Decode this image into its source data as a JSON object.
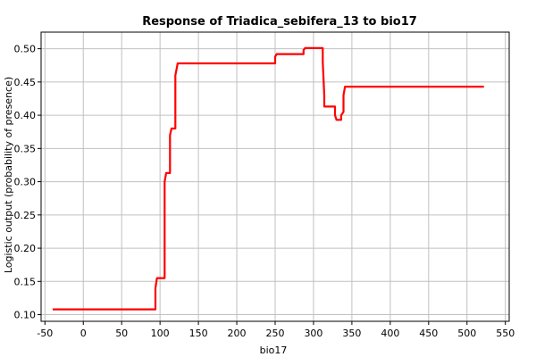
{
  "chart_data": {
    "type": "line",
    "title": "Response of Triadica_sebifera_13 to bio17",
    "xlabel": "bio17",
    "ylabel": "Logistic output (probability of presence)",
    "xlim": [
      -55,
      555
    ],
    "ylim": [
      0.09,
      0.525
    ],
    "x_ticks": [
      -50,
      0,
      50,
      100,
      150,
      200,
      250,
      300,
      350,
      400,
      450,
      500,
      550
    ],
    "y_ticks": [
      0.1,
      0.15,
      0.2,
      0.25,
      0.3,
      0.35,
      0.4,
      0.45,
      0.5
    ],
    "grid": true,
    "series": [
      {
        "name": "response",
        "color": "#ff0000",
        "x": [
          -40,
          94,
          94,
          96,
          96,
          106,
          106,
          108,
          108,
          113,
          113,
          115,
          115,
          120,
          120,
          123,
          123,
          250,
          250,
          252,
          252,
          287,
          287,
          289,
          289,
          312,
          312,
          314,
          314,
          316,
          316,
          328,
          328,
          330,
          330,
          336,
          336,
          339,
          339,
          341,
          341,
          522
        ],
        "values": [
          0.108,
          0.108,
          0.14,
          0.155,
          0.155,
          0.155,
          0.3,
          0.313,
          0.313,
          0.313,
          0.37,
          0.38,
          0.38,
          0.38,
          0.46,
          0.478,
          0.478,
          0.478,
          0.488,
          0.492,
          0.492,
          0.492,
          0.498,
          0.501,
          0.501,
          0.501,
          0.48,
          0.43,
          0.413,
          0.413,
          0.413,
          0.413,
          0.4,
          0.393,
          0.393,
          0.393,
          0.4,
          0.405,
          0.43,
          0.443,
          0.443,
          0.443
        ]
      }
    ]
  }
}
